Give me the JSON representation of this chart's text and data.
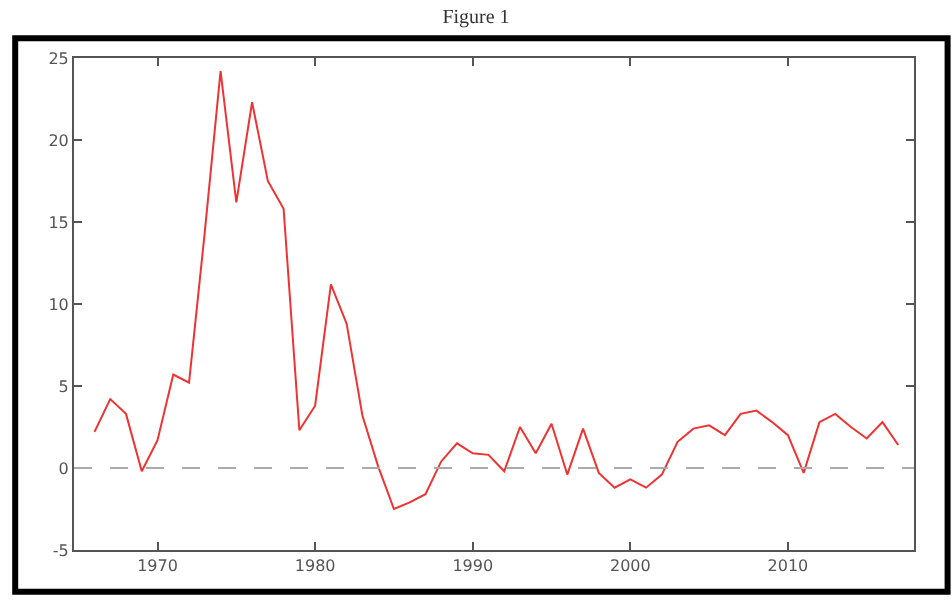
{
  "chart_data": {
    "type": "line",
    "title": "Figure 1",
    "x": [
      1966,
      1967,
      1968,
      1969,
      1970,
      1971,
      1972,
      1973,
      1974,
      1975,
      1976,
      1977,
      1978,
      1979,
      1980,
      1981,
      1982,
      1983,
      1984,
      1985,
      1986,
      1987,
      1988,
      1989,
      1990,
      1991,
      1992,
      1993,
      1994,
      1995,
      1996,
      1997,
      1998,
      1999,
      2000,
      2001,
      2002,
      2003,
      2004,
      2005,
      2006,
      2007,
      2008,
      2009,
      2010,
      2011,
      2012,
      2013,
      2014,
      2015,
      2016,
      2017
    ],
    "series": [
      {
        "color": "#ee3333",
        "values": [
          2.2,
          4.2,
          3.3,
          -0.2,
          1.7,
          5.7,
          5.2,
          14.4,
          24.2,
          16.2,
          22.3,
          17.5,
          15.8,
          2.3,
          3.8,
          11.2,
          8.8,
          3.2,
          0.1,
          -2.5,
          -2.1,
          -1.6,
          0.4,
          1.5,
          0.9,
          0.8,
          -0.2,
          2.5,
          0.9,
          2.7,
          -0.4,
          2.4,
          -0.3,
          -1.2,
          -0.7,
          -1.2,
          -0.4,
          1.6,
          2.4,
          2.6,
          2.0,
          3.3,
          3.5,
          2.8,
          2.0,
          -0.3,
          2.8,
          3.3,
          2.5,
          1.8,
          2.8,
          1.4
        ]
      }
    ],
    "xlim": [
      1964.7,
      2018
    ],
    "xticks": [
      1970,
      1980,
      1990,
      2000,
      2010
    ],
    "ylim": [
      -5,
      25
    ],
    "yticks": [
      -5,
      0,
      5,
      10,
      15,
      20,
      25
    ],
    "ref_lines": [
      {
        "axis": "y",
        "value": 0,
        "color": "#aaaaaa",
        "line_style": "dashed"
      }
    ],
    "marker": "none",
    "line_style": "solid"
  }
}
